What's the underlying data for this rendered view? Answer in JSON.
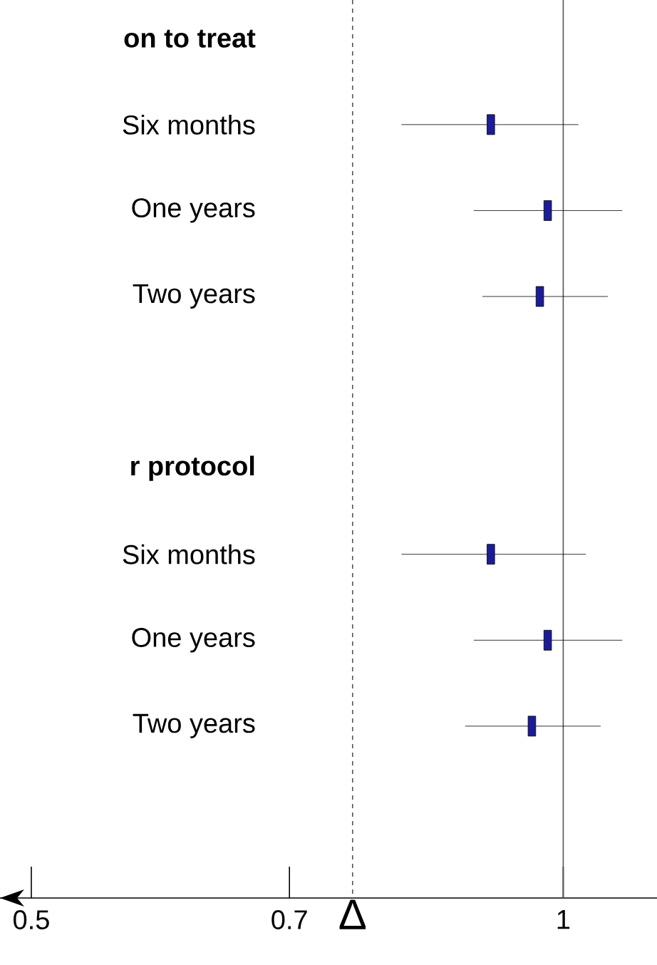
{
  "chart_data": {
    "type": "scatter",
    "orientation": "horizontal",
    "categories": [
      "on to treat",
      "Six months",
      "One years",
      "Two years",
      null,
      "r protocol",
      "Six months",
      "One years",
      "Two years"
    ],
    "values": [
      null,
      0.91,
      0.98,
      0.97,
      null,
      null,
      0.91,
      0.98,
      0.96
    ],
    "errors": [
      null,
      [
        0.81,
        1.02
      ],
      [
        0.89,
        1.08
      ],
      [
        0.9,
        1.06
      ],
      null,
      null,
      [
        0.81,
        1.03
      ],
      [
        0.89,
        1.08
      ],
      [
        0.88,
        1.05
      ]
    ],
    "color": "#1c1c9a",
    "marker": "square",
    "log": "x",
    "xlim": [
      0.48,
      1.13
    ],
    "xticks": [
      0.5,
      0.7,
      1
    ],
    "ref_lines": [
      {
        "axis": "x",
        "value": 1,
        "line_style": "solid",
        "color": "#555555"
      },
      {
        "axis": "x",
        "value": 0.76,
        "label": "Δ",
        "line_style": "dashed",
        "color": "#555555"
      }
    ]
  }
}
